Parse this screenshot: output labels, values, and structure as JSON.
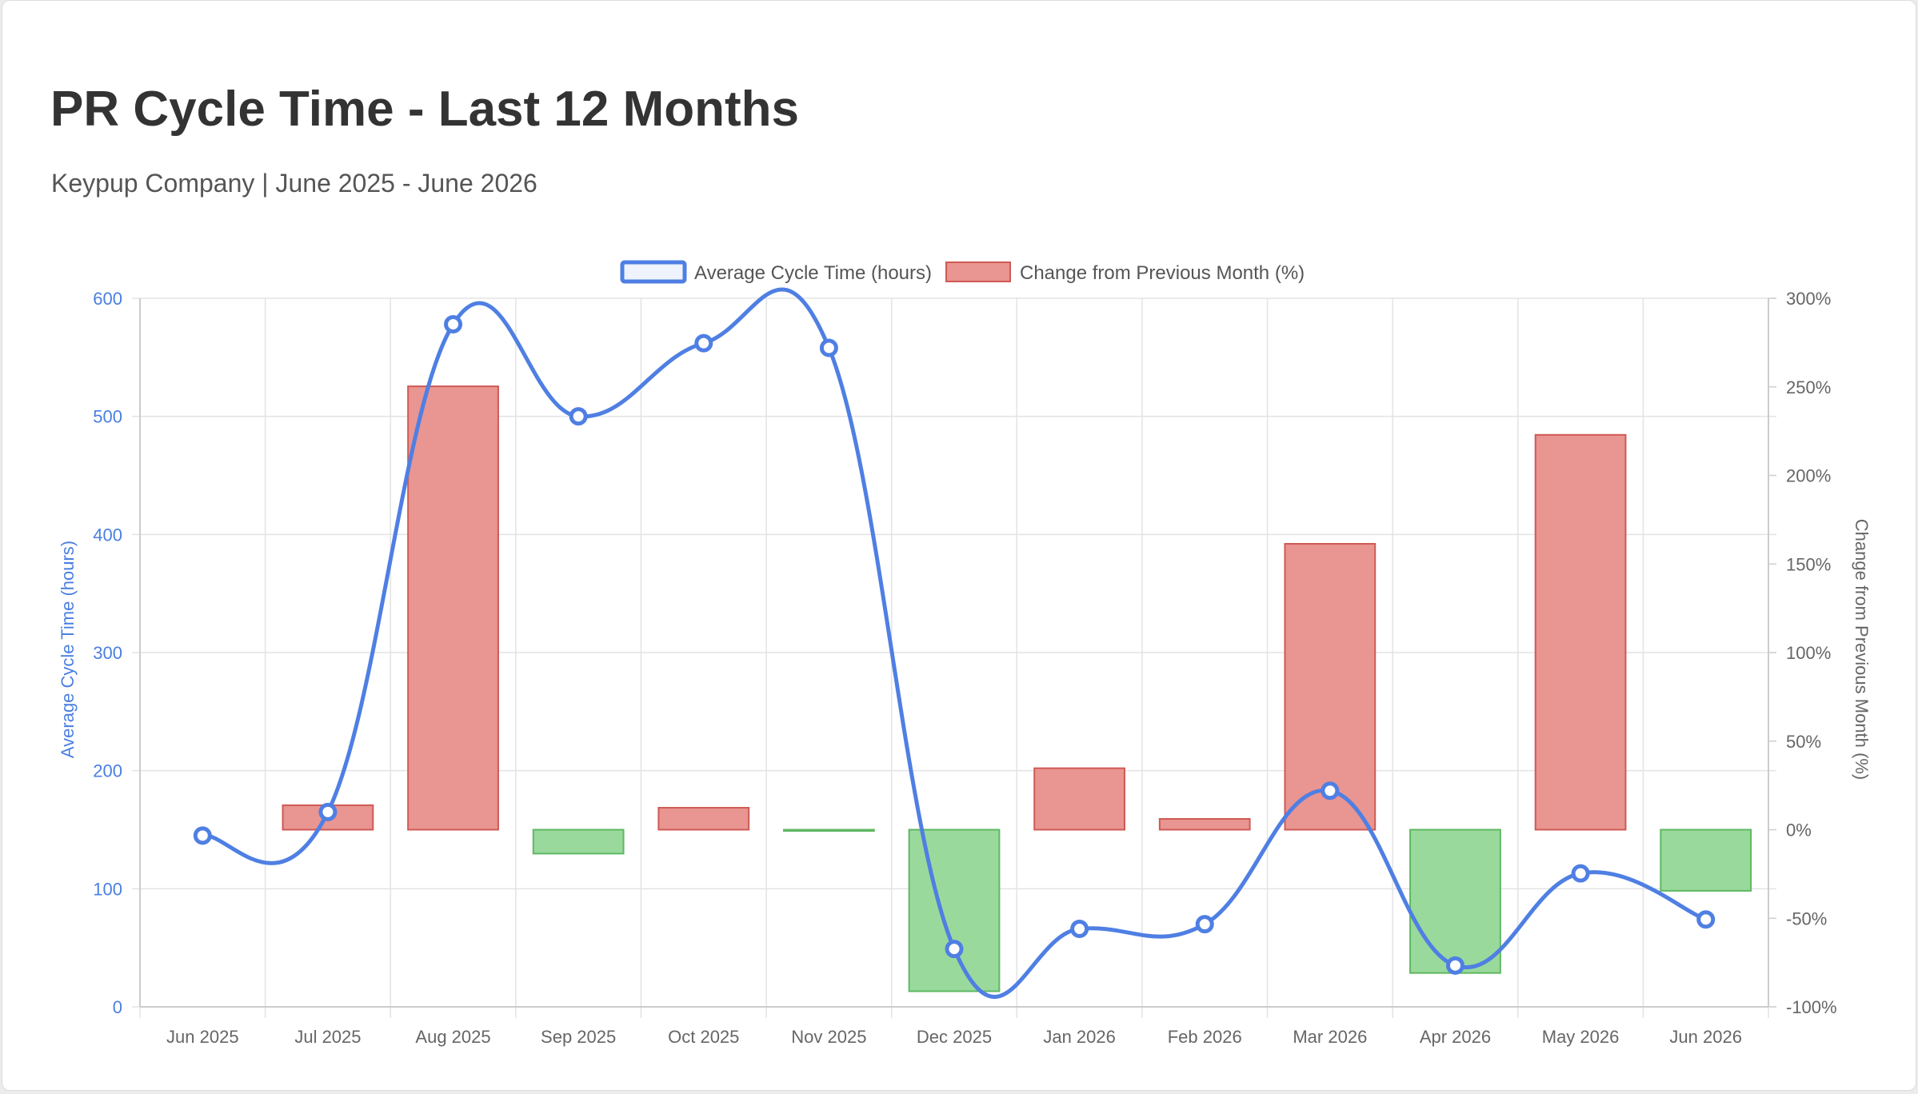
{
  "header": {
    "title": "PR Cycle Time - Last 12 Months",
    "subtitle": "Keypup Company | June 2025 - June 2026"
  },
  "colors": {
    "line": "#4f7fe3",
    "bar_positive": "#e99591",
    "bar_positive_border": "#cf5a55",
    "bar_negative": "#9ad99c",
    "bar_negative_border": "#5fb863",
    "grid": "#e3e3e3"
  },
  "chart_data": {
    "type": "bar",
    "categories": [
      "Jun 2025",
      "Jul 2025",
      "Aug 2025",
      "Sep 2025",
      "Oct 2025",
      "Nov 2025",
      "Dec 2025",
      "Jan 2026",
      "Feb 2026",
      "Mar 2026",
      "Apr 2026",
      "May 2026",
      "Jun 2026"
    ],
    "series": [
      {
        "name": "Average Cycle Time (hours)",
        "type": "line",
        "axis": "left",
        "values": [
          145,
          165,
          578,
          500,
          562,
          558,
          49,
          66,
          70,
          183,
          35,
          113,
          74
        ]
      },
      {
        "name": "Change from Previous Month (%)",
        "type": "bar",
        "axis": "right",
        "values": [
          0,
          13.8,
          250.3,
          -13.5,
          12.4,
          -0.7,
          -91.2,
          34.7,
          6.1,
          161.4,
          -80.9,
          222.9,
          -34.5
        ]
      }
    ],
    "ylabel": "Average Cycle Time (hours)",
    "ylabel_right": "Change from Previous Month (%)",
    "ylim": [
      0,
      600
    ],
    "ylim_right": [
      -100,
      300
    ],
    "yticks": [
      "0",
      "100",
      "200",
      "300",
      "400",
      "500",
      "600"
    ],
    "yticks_right": [
      "-100%",
      "-50%",
      "0%",
      "50%",
      "100%",
      "150%",
      "200%",
      "250%",
      "300%"
    ],
    "grid": true,
    "legend_position": "top-center"
  }
}
